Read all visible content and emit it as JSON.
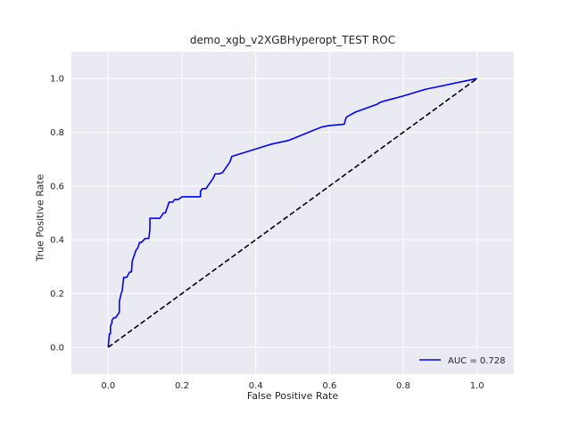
{
  "chart_data": {
    "type": "line",
    "title": "demo_xgb_v2XGBHyperopt_TEST ROC",
    "xlabel": "False Positive Rate",
    "ylabel": "True Positive Rate",
    "xlim": [
      -0.1,
      1.1
    ],
    "ylim": [
      -0.1,
      1.1
    ],
    "xticks": [
      "0.0",
      "0.2",
      "0.4",
      "0.6",
      "0.8",
      "1.0"
    ],
    "yticks": [
      "0.0",
      "0.2",
      "0.4",
      "0.6",
      "0.8",
      "1.0"
    ],
    "grid": true,
    "legend_position": "bottom-right",
    "colors": {
      "roc": "#0000ff",
      "chance": "#000000",
      "plot_bg": "#eaeaf2",
      "grid": "#ffffff"
    },
    "series": [
      {
        "name": "AUC = 0.728",
        "style": "solid",
        "x": [
          0.0,
          0.003,
          0.006,
          0.006,
          0.01,
          0.01,
          0.015,
          0.02,
          0.025,
          0.03,
          0.03,
          0.035,
          0.038,
          0.04,
          0.042,
          0.045,
          0.05,
          0.058,
          0.063,
          0.065,
          0.07,
          0.075,
          0.08,
          0.085,
          0.09,
          0.1,
          0.11,
          0.113,
          0.113,
          0.115,
          0.125,
          0.14,
          0.15,
          0.155,
          0.16,
          0.165,
          0.175,
          0.18,
          0.19,
          0.2,
          0.21,
          0.22,
          0.25,
          0.25,
          0.255,
          0.265,
          0.27,
          0.275,
          0.28,
          0.285,
          0.29,
          0.3,
          0.31,
          0.315,
          0.32,
          0.325,
          0.33,
          0.335,
          0.44,
          0.49,
          0.57,
          0.58,
          0.6,
          0.64,
          0.645,
          0.65,
          0.67,
          0.7,
          0.73,
          0.735,
          0.745,
          0.8,
          0.86,
          1.0
        ],
        "y": [
          0.0,
          0.05,
          0.05,
          0.08,
          0.09,
          0.1,
          0.11,
          0.11,
          0.12,
          0.13,
          0.17,
          0.2,
          0.21,
          0.24,
          0.26,
          0.26,
          0.26,
          0.28,
          0.28,
          0.32,
          0.34,
          0.36,
          0.37,
          0.39,
          0.39,
          0.405,
          0.405,
          0.44,
          0.48,
          0.48,
          0.48,
          0.48,
          0.5,
          0.5,
          0.52,
          0.54,
          0.54,
          0.55,
          0.55,
          0.56,
          0.56,
          0.56,
          0.56,
          0.58,
          0.59,
          0.59,
          0.6,
          0.61,
          0.62,
          0.63,
          0.645,
          0.645,
          0.65,
          0.66,
          0.67,
          0.68,
          0.69,
          0.71,
          0.755,
          0.77,
          0.815,
          0.82,
          0.825,
          0.83,
          0.855,
          0.86,
          0.875,
          0.89,
          0.905,
          0.91,
          0.915,
          0.935,
          0.96,
          1.0
        ]
      },
      {
        "name": "",
        "style": "dashed",
        "x": [
          0.0,
          1.0
        ],
        "y": [
          0.0,
          1.0
        ]
      }
    ]
  }
}
